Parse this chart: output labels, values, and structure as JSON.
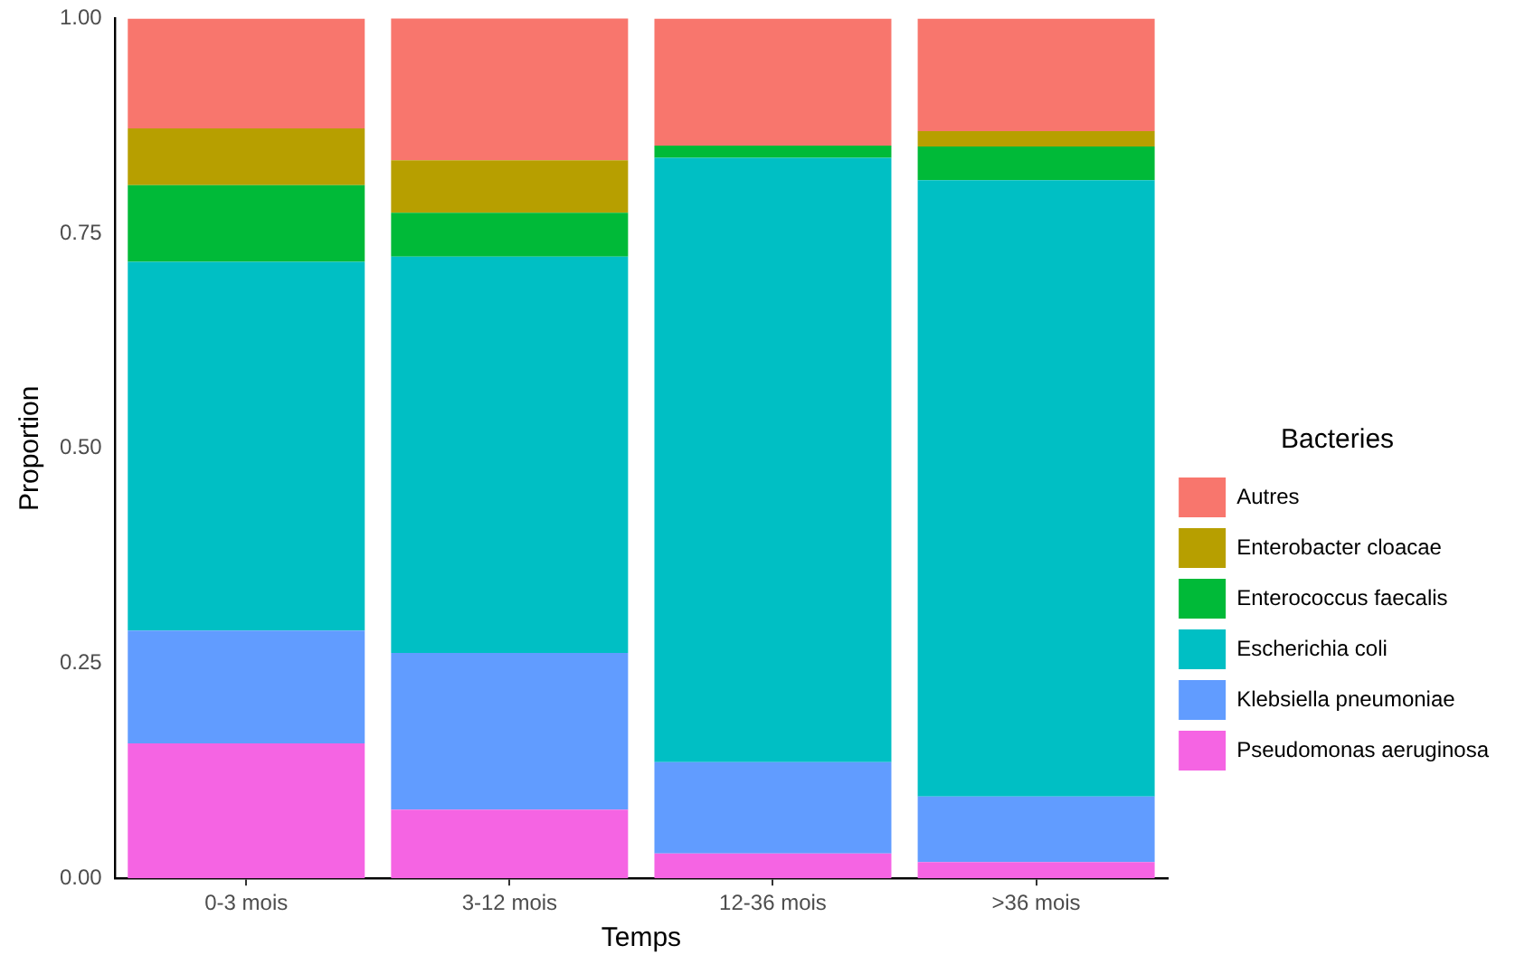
{
  "chart_data": {
    "type": "bar",
    "stacked": true,
    "xlabel": "Temps",
    "ylabel": "Proportion",
    "legend_title": "Bacteries",
    "legend": "right",
    "grid": false,
    "categories": [
      "0-3 mois",
      "3-12 mois",
      "12-36 mois",
      ">36 mois"
    ],
    "ylim": [
      0,
      1
    ],
    "yticks": [
      {
        "value": 0,
        "label": "0.00"
      },
      {
        "value": 0.25,
        "label": "0.25"
      },
      {
        "value": 0.5,
        "label": "0.50"
      },
      {
        "value": 0.75,
        "label": "0.75"
      },
      {
        "value": 1,
        "label": "1.00"
      }
    ],
    "series": [
      {
        "name": "Pseudomonas aeruginosa",
        "color": "#f564e3",
        "values": [
          0.157,
          0.08,
          0.029,
          0.019
        ]
      },
      {
        "name": "Klebsiella pneumoniae",
        "color": "#619cff",
        "values": [
          0.131,
          0.182,
          0.106,
          0.076
        ]
      },
      {
        "name": "Escherichia coli",
        "color": "#00bfc4",
        "values": [
          0.429,
          0.461,
          0.703,
          0.717
        ]
      },
      {
        "name": "Enterococcus faecalis",
        "color": "#00ba38",
        "values": [
          0.089,
          0.051,
          0.014,
          0.039
        ]
      },
      {
        "name": "Enterobacter cloacae",
        "color": "#b79f00",
        "values": [
          0.066,
          0.061,
          0,
          0.018
        ]
      },
      {
        "name": "Autres",
        "color": "#f8766d",
        "values": [
          0.128,
          0.167,
          0.148,
          0.131
        ]
      }
    ]
  }
}
